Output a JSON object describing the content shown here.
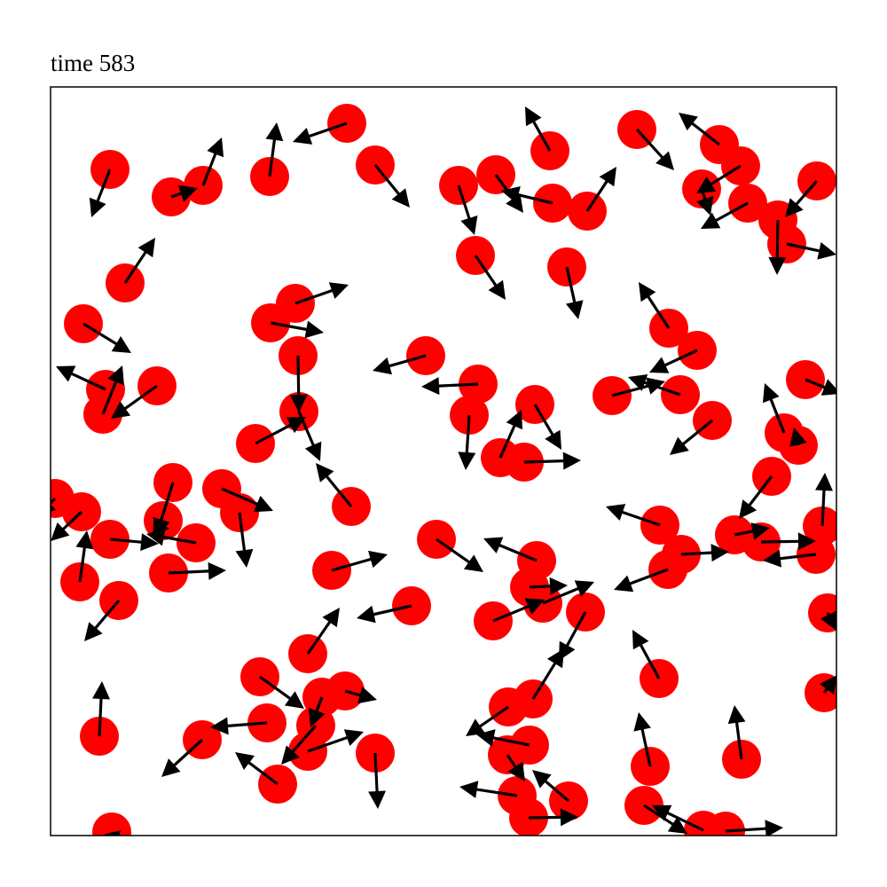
{
  "chart_data": {
    "type": "quiver",
    "title": "time 583",
    "xlim": [
      0,
      886
    ],
    "ylim": [
      0,
      844
    ],
    "color": "#ff0000",
    "arrow_color": "#000000",
    "x": [
      67,
      136,
      172,
      247,
      334,
      366,
      460,
      502,
      563,
      566,
      605,
      661,
      754,
      778,
      734,
      786,
      864,
      820,
      830,
      479,
      582,
      84,
      37,
      248,
      276,
      279,
      62,
      59,
      120,
      423,
      482,
      472,
      546,
      507,
      534,
      280,
      231,
      697,
      729,
      633,
      710,
      746,
      851,
      827,
      843,
      813,
      339,
      5,
      35,
      138,
      193,
      213,
      127,
      67,
      164,
      133,
      33,
      77,
      317,
      435,
      407,
      548,
      540,
      555,
      499,
      603,
      687,
      711,
      696,
      771,
      801,
      870,
      863,
      876,
      872,
      290,
      236,
      306,
      332,
      244,
      299,
      290,
      171,
      256,
      366,
      55,
      69,
      544,
      516,
      540,
      515,
      526,
      539,
      584,
      686,
      676,
      779,
      669,
      736,
      761
    ],
    "y": [
      751,
      720,
      733,
      743,
      803,
      756,
      733,
      745,
      772,
      713,
      704,
      796,
      779,
      755,
      729,
      713,
      738,
      694,
      667,
      654,
      641,
      623,
      577,
      578,
      600,
      541,
      503,
      475,
      507,
      541,
      509,
      474,
      486,
      426,
      421,
      478,
      442,
      572,
      547,
      496,
      497,
      468,
      514,
      454,
      440,
      405,
      371,
      380,
      365,
      398,
      391,
      364,
      355,
      334,
      330,
      296,
      286,
      265,
      299,
      334,
      259,
      310,
      280,
      262,
      242,
      252,
      350,
      317,
      300,
      339,
      331,
      349,
      317,
      251,
      161,
      205,
      179,
      156,
      163,
      127,
      124,
      95,
      108,
      58,
      93,
      112,
      4,
      154,
      145,
      102,
      91,
      45,
      20,
      39,
      177,
      78,
      86,
      34,
      6,
      5
    ],
    "u": [
      -21,
      30,
      21,
      8,
      -61,
      39,
      18,
      31,
      -28,
      -58,
      33,
      42,
      -46,
      -50,
      10,
      -53,
      -36,
      -1,
      56,
      34,
      13,
      34,
      54,
      60,
      60,
      1,
      -56,
      22,
      -52,
      -60,
      -64,
      -4,
      30,
      24,
      64,
      24,
      57,
      -34,
      -54,
      60,
      -59,
      -48,
      40,
      -22,
      -5,
      -37,
      -40,
      -20,
      -35,
      -19,
      58,
      8,
      -12,
      55,
      -56,
      65,
      8,
      -39,
      63,
      53,
      -62,
      -60,
      43,
      58,
      58,
      -30,
      -61,
      54,
      -61,
      40,
      62,
      3,
      -60,
      10,
      15,
      36,
      50,
      -13,
      36,
      -64,
      -39,
      63,
      -46,
      -48,
      3,
      3,
      5,
      35,
      -48,
      -60,
      20,
      -65,
      56,
      -41,
      -30,
      -13,
      -8,
      49,
      -58,
      65
    ],
    "v": [
      -54,
      10,
      54,
      61,
      -21,
      -48,
      -56,
      -43,
      50,
      14,
      50,
      -46,
      36,
      -31,
      -30,
      -29,
      -41,
      -62,
      -12,
      -50,
      -59,
      51,
      -33,
      -11,
      21,
      -64,
      26,
      55,
      -37,
      -17,
      -3,
      -62,
      -51,
      54,
      2,
      -56,
      30,
      52,
      -25,
      16,
      20,
      -39,
      -16,
      56,
      20,
      -48,
      49,
      -20,
      -33,
      -61,
      -25,
      -62,
      -21,
      -5,
      10,
      3,
      58,
      -46,
      18,
      -37,
      -14,
      25,
      2,
      24,
      24,
      -55,
      21,
      3,
      -23,
      8,
      1,
      60,
      -7,
      -20,
      20,
      52,
      -36,
      -34,
      -10,
      -5,
      -44,
      22,
      -42,
      36,
      -63,
      62,
      -20,
      57,
      -33,
      12,
      -30,
      10,
      1,
      35,
      55,
      61,
      61,
      -32,
      28,
      4
    ]
  }
}
